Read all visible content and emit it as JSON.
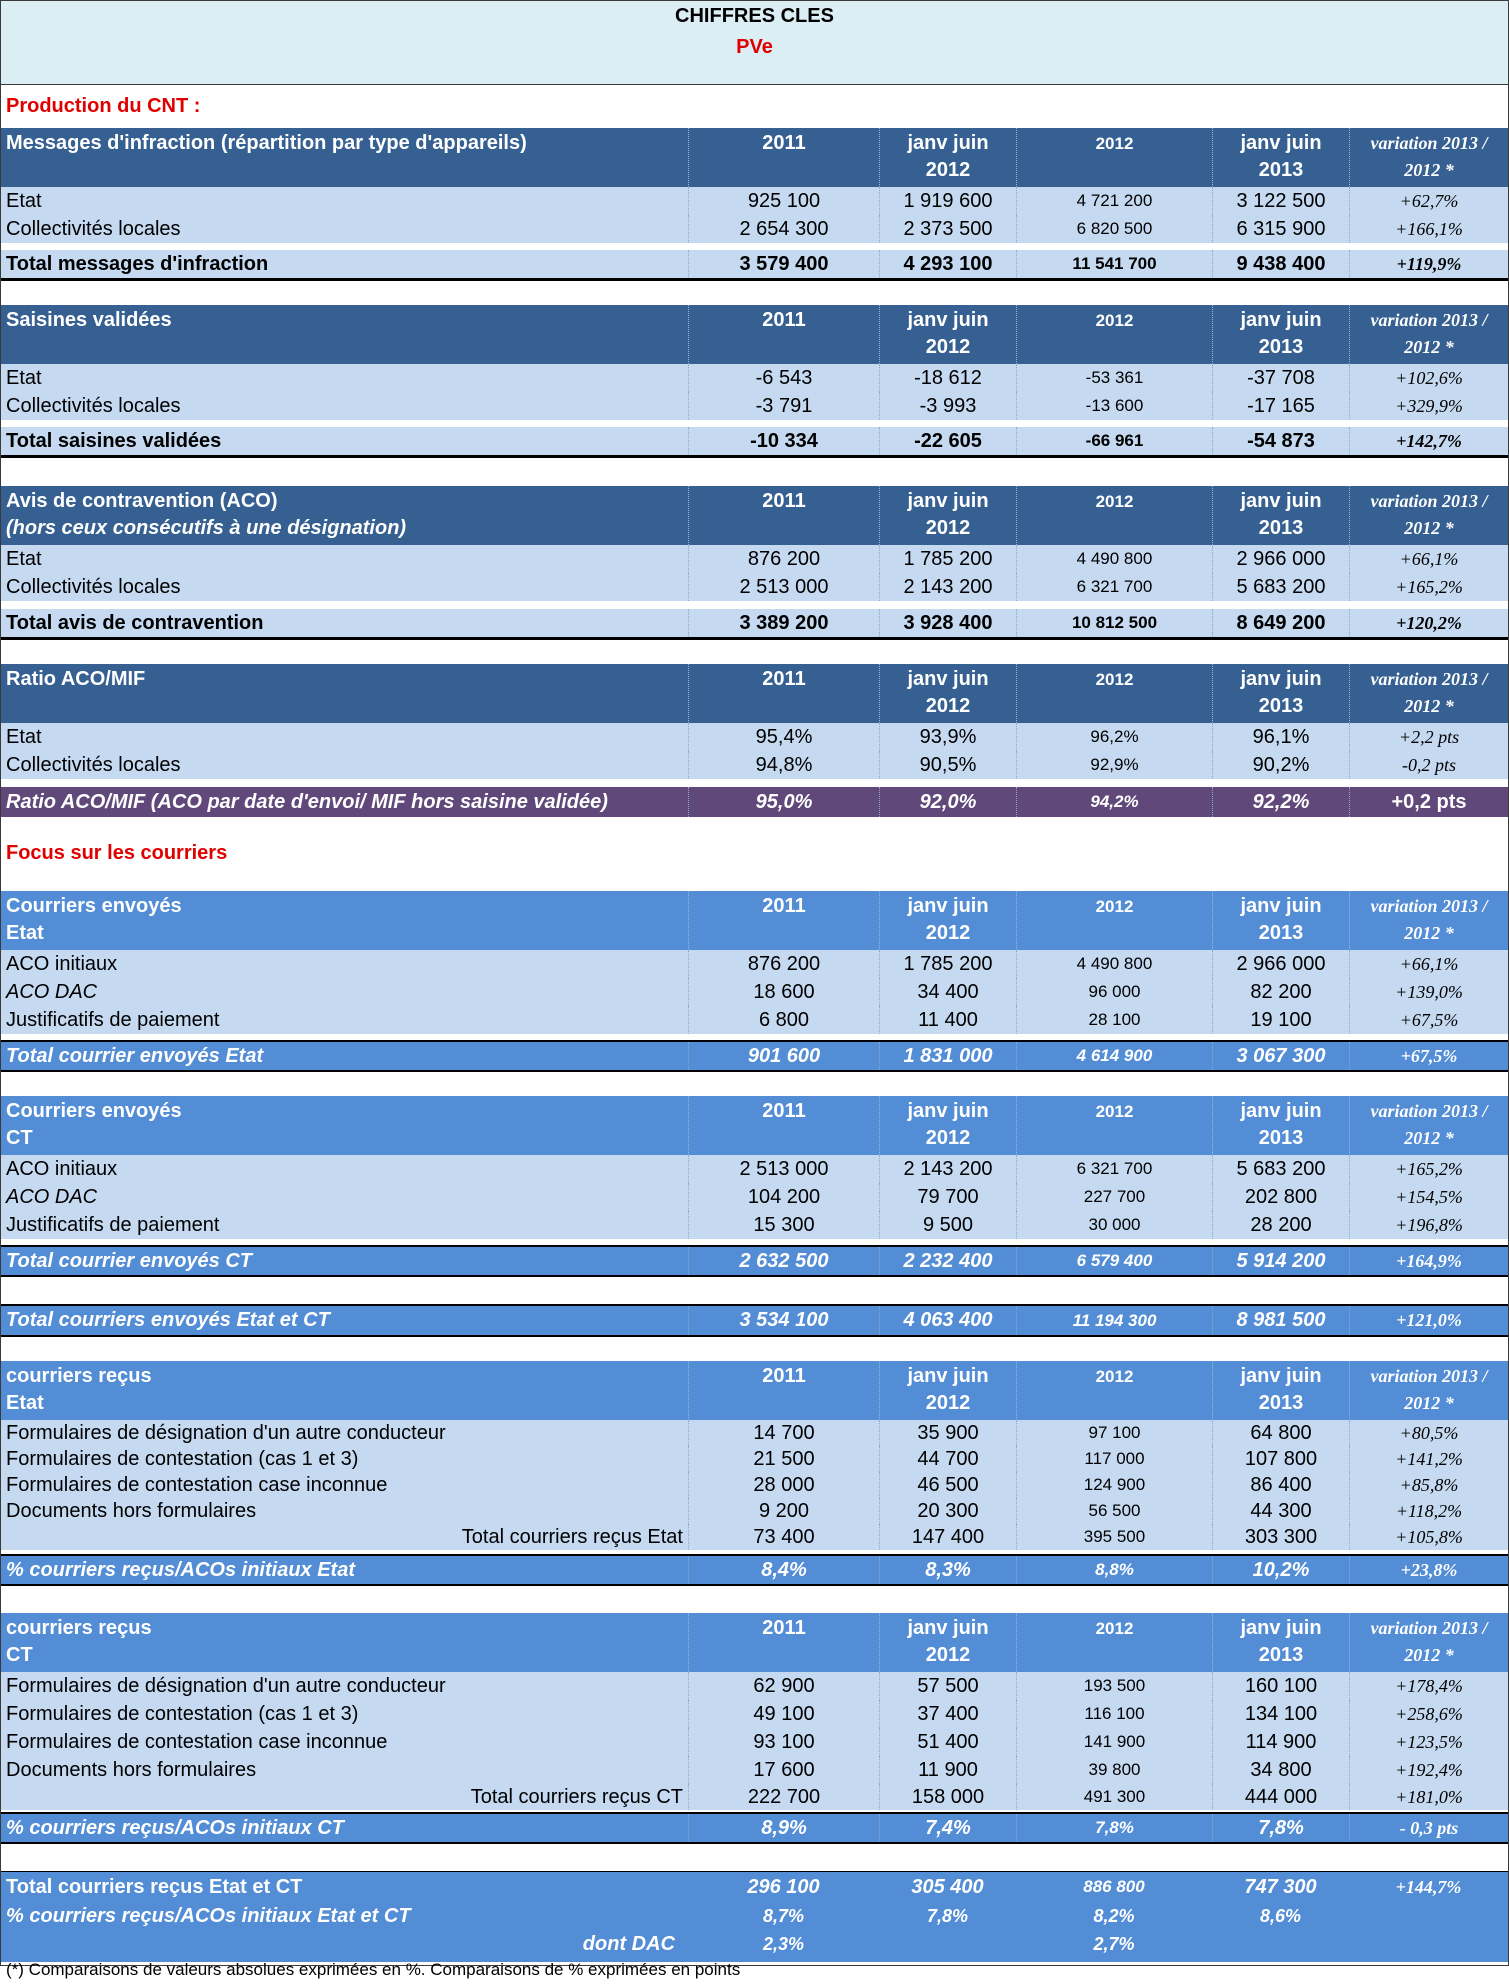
{
  "title": "CHIFFRES CLES",
  "subtitle": "PVe",
  "section_production": "Production du CNT :",
  "section_focus": "Focus sur les courriers",
  "col_headers": {
    "c2011": "2011",
    "janv_a": "janv juin",
    "janv_b_2012": "2012",
    "c2012": "2012",
    "janv_b_2013": "2013",
    "var_a": "variation 2013 /",
    "var_b": "2012 *"
  },
  "mif": {
    "title": "Messages d'infraction (répartition par type d'appareils)",
    "rows": [
      {
        "label": "Etat",
        "v": [
          "925 100",
          "1 919 600",
          "4 721 200",
          "3 122 500",
          "+62,7%"
        ]
      },
      {
        "label": "Collectivités locales",
        "v": [
          "2 654 300",
          "2 373 500",
          "6 820 500",
          "6 315 900",
          "+166,1%"
        ]
      }
    ],
    "total": {
      "label": "Total messages d'infraction",
      "v": [
        "3 579 400",
        "4 293 100",
        "11 541 700",
        "9 438 400",
        "+119,9%"
      ]
    }
  },
  "saisines": {
    "title": "Saisines validées",
    "rows": [
      {
        "label": "Etat",
        "v": [
          "-6 543",
          "-18 612",
          "-53 361",
          "-37 708",
          "+102,6%"
        ]
      },
      {
        "label": "Collectivités locales",
        "v": [
          "-3 791",
          "-3 993",
          "-13 600",
          "-17 165",
          "+329,9%"
        ]
      }
    ],
    "total": {
      "label": "Total saisines validées",
      "v": [
        "-10 334",
        "-22 605",
        "-66 961",
        "-54 873",
        "+142,7%"
      ]
    }
  },
  "aco": {
    "title1": "Avis de contravention (ACO)",
    "title2": "(hors ceux consécutifs à une désignation)",
    "rows": [
      {
        "label": "Etat",
        "v": [
          "876 200",
          "1 785 200",
          "4 490 800",
          "2 966 000",
          "+66,1%"
        ]
      },
      {
        "label": "Collectivités locales",
        "v": [
          "2 513 000",
          "2 143 200",
          "6 321 700",
          "5 683 200",
          "+165,2%"
        ]
      }
    ],
    "total": {
      "label": "Total avis de contravention",
      "v": [
        "3 389 200",
        "3 928 400",
        "10 812 500",
        "8 649 200",
        "+120,2%"
      ]
    }
  },
  "ratio": {
    "title": "Ratio ACO/MIF",
    "rows": [
      {
        "label": "Etat",
        "v": [
          "95,4%",
          "93,9%",
          "96,2%",
          "96,1%",
          "+2,2 pts"
        ]
      },
      {
        "label": "Collectivités locales",
        "v": [
          "94,8%",
          "90,5%",
          "92,9%",
          "90,2%",
          "-0,2 pts"
        ]
      }
    ],
    "total": {
      "label": "Ratio ACO/MIF (ACO par date d'envoi/ MIF hors saisine validée)",
      "v": [
        "95,0%",
        "92,0%",
        "94,2%",
        "92,2%",
        "+0,2 pts"
      ]
    }
  },
  "env_etat": {
    "title1": "Courriers envoyés",
    "title2": "Etat",
    "rows": [
      {
        "label": "ACO initiaux",
        "v": [
          "876 200",
          "1 785 200",
          "4 490 800",
          "2 966 000",
          "+66,1%"
        ]
      },
      {
        "label": "ACO DAC",
        "v": [
          "18 600",
          "34 400",
          "96 000",
          "82 200",
          "+139,0%"
        ]
      },
      {
        "label": "Justificatifs de paiement",
        "v": [
          "6 800",
          "11 400",
          "28 100",
          "19 100",
          "+67,5%"
        ]
      }
    ],
    "total": {
      "label": "Total courrier envoyés Etat",
      "v": [
        "901 600",
        "1 831 000",
        "4 614 900",
        "3 067 300",
        "+67,5%"
      ]
    }
  },
  "env_ct": {
    "title1": "Courriers envoyés",
    "title2": "CT",
    "rows": [
      {
        "label": "ACO initiaux",
        "v": [
          "2 513 000",
          "2 143 200",
          "6 321 700",
          "5 683 200",
          "+165,2%"
        ]
      },
      {
        "label": "ACO DAC",
        "v": [
          "104 200",
          "79 700",
          "227 700",
          "202 800",
          "+154,5%"
        ]
      },
      {
        "label": "Justificatifs de paiement",
        "v": [
          "15 300",
          "9 500",
          "30 000",
          "28 200",
          "+196,8%"
        ]
      }
    ],
    "total": {
      "label": "Total courrier envoyés CT",
      "v": [
        "2 632 500",
        "2 232 400",
        "6 579 400",
        "5 914 200",
        "+164,9%"
      ]
    }
  },
  "env_total": {
    "label": "Total courriers envoyés Etat et CT",
    "v": [
      "3 534 100",
      "4 063 400",
      "11 194 300",
      "8 981 500",
      "+121,0%"
    ]
  },
  "rec_etat": {
    "title1": "courriers reçus",
    "title2": "Etat",
    "rows": [
      {
        "label": "Formulaires de désignation d'un autre conducteur",
        "v": [
          "14 700",
          "35 900",
          "97 100",
          "64 800",
          "+80,5%"
        ]
      },
      {
        "label": "Formulaires de contestation (cas 1 et 3)",
        "v": [
          "21 500",
          "44 700",
          "117 000",
          "107 800",
          "+141,2%"
        ]
      },
      {
        "label": "Formulaires de contestation case inconnue",
        "v": [
          "28 000",
          "46 500",
          "124 900",
          "86 400",
          "+85,8%"
        ]
      },
      {
        "label": "Documents hors formulaires",
        "v": [
          "9 200",
          "20 300",
          "56 500",
          "44 300",
          "+118,2%"
        ]
      },
      {
        "label": "Total courriers reçus Etat",
        "v": [
          "73 400",
          "147 400",
          "395 500",
          "303 300",
          "+105,8%"
        ]
      }
    ],
    "total": {
      "label": "% courriers reçus/ACOs initiaux Etat",
      "v": [
        "8,4%",
        "8,3%",
        "8,8%",
        "10,2%",
        "+23,8%"
      ]
    }
  },
  "rec_ct": {
    "title1": "courriers reçus",
    "title2": "CT",
    "rows": [
      {
        "label": "Formulaires de désignation d'un autre conducteur",
        "v": [
          "62 900",
          "57 500",
          "193 500",
          "160 100",
          "+178,4%"
        ]
      },
      {
        "label": "Formulaires de contestation (cas 1 et 3)",
        "v": [
          "49 100",
          "37 400",
          "116 100",
          "134 100",
          "+258,6%"
        ]
      },
      {
        "label": "Formulaires de contestation case inconnue",
        "v": [
          "93 100",
          "51 400",
          "141 900",
          "114 900",
          "+123,5%"
        ]
      },
      {
        "label": "Documents hors formulaires",
        "v": [
          "17 600",
          "11 900",
          "39 800",
          "34 800",
          "+192,4%"
        ]
      },
      {
        "label": "Total courriers reçus CT",
        "v": [
          "222 700",
          "158 000",
          "491 300",
          "444 000",
          "+181,0%"
        ]
      }
    ],
    "total": {
      "label": "% courriers reçus/ACOs initiaux CT",
      "v": [
        "8,9%",
        "7,4%",
        "7,8%",
        "7,8%",
        "- 0,3 pts"
      ]
    }
  },
  "final": {
    "rows": [
      {
        "label": "Total courriers reçus Etat et CT",
        "v": [
          "296 100",
          "305 400",
          "886 800",
          "747 300",
          "+144,7%"
        ]
      },
      {
        "label": "% courriers reçus/ACOs initiaux Etat et CT",
        "v": [
          "8,7%",
          "7,8%",
          "8,2%",
          "8,6%",
          ""
        ]
      },
      {
        "label": "dont DAC",
        "v": [
          "2,3%",
          "",
          "2,7%",
          "",
          ""
        ]
      }
    ]
  },
  "footnote": "(*) Comparaisons de valeurs absolues exprimées en %. Comparaisons de % exprimées en points"
}
